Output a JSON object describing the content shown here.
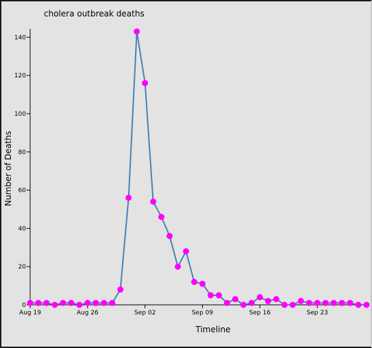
{
  "chart_data": {
    "type": "line",
    "title": "cholera outbreak deaths",
    "xlabel": "Timeline",
    "ylabel": "Number of Deaths",
    "x_ticks": [
      "Aug 19",
      "Aug 26",
      "Sep 02",
      "Sep 09",
      "Sep 16",
      "Sep 23"
    ],
    "y_ticks": [
      "0",
      "20",
      "40",
      "60",
      "80",
      "100",
      "120",
      "140"
    ],
    "xlim": [
      "1854-08-19",
      "1854-09-29"
    ],
    "ylim": [
      0,
      143
    ],
    "series_color": "#4682b4",
    "marker_color": "#ff00ff",
    "x": [
      "1854-08-19",
      "1854-08-20",
      "1854-08-21",
      "1854-08-22",
      "1854-08-23",
      "1854-08-24",
      "1854-08-25",
      "1854-08-26",
      "1854-08-27",
      "1854-08-28",
      "1854-08-29",
      "1854-08-30",
      "1854-08-31",
      "1854-09-01",
      "1854-09-02",
      "1854-09-03",
      "1854-09-04",
      "1854-09-05",
      "1854-09-06",
      "1854-09-07",
      "1854-09-08",
      "1854-09-09",
      "1854-09-10",
      "1854-09-11",
      "1854-09-12",
      "1854-09-13",
      "1854-09-14",
      "1854-09-15",
      "1854-09-16",
      "1854-09-17",
      "1854-09-18",
      "1854-09-19",
      "1854-09-20",
      "1854-09-21",
      "1854-09-22",
      "1854-09-23",
      "1854-09-24",
      "1854-09-25",
      "1854-09-26",
      "1854-09-27",
      "1854-09-28",
      "1854-09-29"
    ],
    "values": [
      1,
      1,
      1,
      0,
      1,
      1,
      0,
      1,
      1,
      1,
      1,
      8,
      56,
      143,
      116,
      54,
      46,
      36,
      20,
      28,
      12,
      11,
      5,
      5,
      1,
      3,
      0,
      1,
      4,
      2,
      3,
      0,
      0,
      2,
      1,
      1,
      1,
      1,
      1,
      1,
      0,
      0
    ]
  }
}
